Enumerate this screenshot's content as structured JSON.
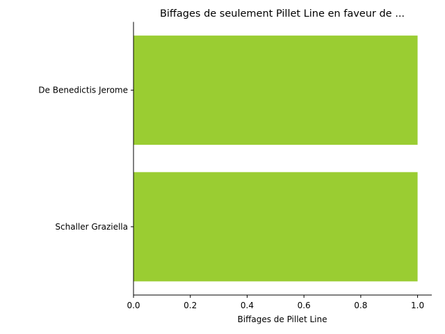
{
  "chart_data": {
    "type": "bar",
    "orientation": "horizontal",
    "title": "Biffages de seulement Pillet Line en faveur de ...",
    "xlabel": "Biffages de Pillet Line",
    "ylabel": "",
    "categories": [
      "De Benedictis Jerome",
      "Schaller Graziella"
    ],
    "values": [
      1,
      1
    ],
    "xlim": [
      0,
      1.05
    ],
    "xticks": [
      "0.0",
      "0.2",
      "0.4",
      "0.6",
      "0.8",
      "1.0"
    ],
    "xtick_values": [
      0,
      0.2,
      0.4,
      0.6,
      0.8,
      1.0
    ],
    "bar_color": "#9acd32",
    "grid": false,
    "legend": "none"
  }
}
